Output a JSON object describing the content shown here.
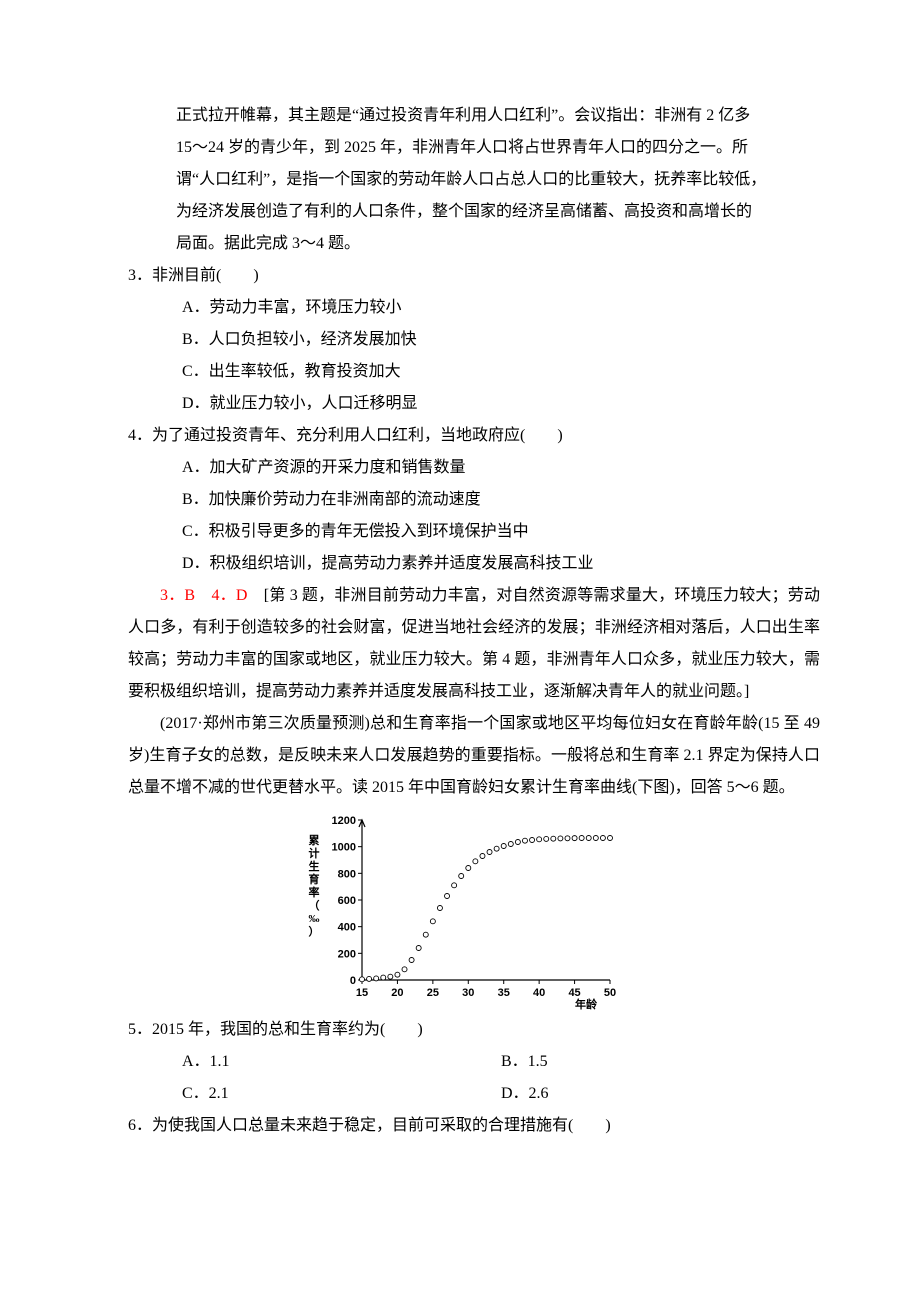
{
  "intro1": {
    "line1": "正式拉开帷幕，其主题是“通过投资青年利用人口红利”。会议指出：非洲有 2 亿多",
    "line2": "15～24 岁的青少年，到 2025 年，非洲青年人口将占世界青年人口的四分之一。所",
    "line3": "谓“人口红利”，是指一个国家的劳动年龄人口占总人口的比重较大，抚养率比较低，",
    "line4": "为经济发展创造了有利的人口条件，整个国家的经济呈高储蓄、高投资和高增长的",
    "line5": "局面。据此完成 3～4 题。"
  },
  "q3": {
    "stem": "3．非洲目前(　　)",
    "A": "A．劳动力丰富，环境压力较小",
    "B": "B．人口负担较小，经济发展加快",
    "C": "C．出生率较低，教育投资加大",
    "D": "D．就业压力较小，人口迁移明显"
  },
  "q4": {
    "stem": "4．为了通过投资青年、充分利用人口红利，当地政府应(　　)",
    "A": "A．加大矿产资源的开采力度和销售数量",
    "B": "B．加快廉价劳动力在非洲南部的流动速度",
    "C": "C．积极引导更多的青年无偿投入到环境保护当中",
    "D": "D．积极组织培训，提高劳动力素养并适度发展高科技工业"
  },
  "answer34": {
    "head": "3．B　4．D",
    "body": "　[第 3 题，非洲目前劳动力丰富，对自然资源等需求量大，环境压力较大；劳动人口多，有利于创造较多的社会财富，促进当地社会经济的发展；非洲经济相对落后，人口出生率较高；劳动力丰富的国家或地区，就业压力较大。第 4 题，非洲青年人口众多，就业压力较大，需要积极组织培训，提高劳动力素养并适度发展高科技工业，逐渐解决青年人的就业问题。]"
  },
  "intro2": {
    "text": "(2017·郑州市第三次质量预测)总和生育率指一个国家或地区平均每位妇女在育龄年龄(15 至 49 岁)生育子女的总数，是反映未来人口发展趋势的重要指标。一般将总和生育率 2.1 界定为保持人口总量不增不减的世代更替水平。读 2015 年中国育龄妇女累计生育率曲线(下图)，回答 5～6 题。"
  },
  "chart": {
    "type": "line",
    "x_values": [
      15,
      16,
      17,
      18,
      19,
      20,
      21,
      22,
      23,
      24,
      25,
      26,
      27,
      28,
      29,
      30,
      31,
      32,
      33,
      34,
      35,
      36,
      37,
      38,
      39,
      40,
      41,
      42,
      43,
      44,
      45,
      46,
      47,
      48,
      49,
      50
    ],
    "y_values": [
      5,
      8,
      12,
      18,
      25,
      40,
      80,
      150,
      240,
      340,
      440,
      540,
      630,
      710,
      780,
      840,
      890,
      930,
      960,
      985,
      1005,
      1020,
      1035,
      1045,
      1050,
      1055,
      1058,
      1060,
      1062,
      1063,
      1064,
      1065,
      1065,
      1065,
      1065,
      1065
    ],
    "ylim": [
      0,
      1200
    ],
    "ytick_step": 200,
    "y_ticks": [
      0,
      200,
      400,
      600,
      800,
      1000,
      1200
    ],
    "xlim": [
      15,
      50
    ],
    "xtick_step": 5,
    "x_ticks": [
      15,
      20,
      25,
      30,
      35,
      40,
      45,
      50
    ],
    "x_label": "年龄",
    "y_label": "累计生育率（‰）",
    "line_color": "#000000",
    "marker": "circle-open",
    "marker_size": 4,
    "background_color": "#ffffff",
    "axis_color": "#000000",
    "label_fontsize": 11
  },
  "q5": {
    "stem": "5．2015 年，我国的总和生育率约为(　　)",
    "A": "A．1.1",
    "B": "B．1.5",
    "C": "C．2.1",
    "D": "D．2.6"
  },
  "q6": {
    "stem": "6．为使我国人口总量未来趋于稳定，目前可采取的合理措施有(　　)"
  }
}
